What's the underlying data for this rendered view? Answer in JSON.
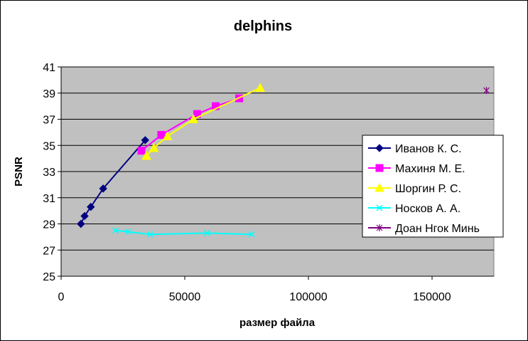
{
  "chart_data": {
    "type": "line",
    "title": "delphins",
    "xlabel": "размер файла",
    "ylabel": "PSNR",
    "xlim": [
      0,
      175000
    ],
    "ylim": [
      25,
      41
    ],
    "xticks": [
      0,
      50000,
      100000,
      150000
    ],
    "yticks": [
      25,
      27,
      29,
      31,
      33,
      35,
      37,
      39,
      41
    ],
    "grid": "horizontal",
    "plot_background": "#c0c0c0",
    "legend_position": "right",
    "series": [
      {
        "name": "Иванов К. С.",
        "color": "#000080",
        "marker": "diamond",
        "x": [
          8000,
          9500,
          12000,
          17000,
          34000
        ],
        "y": [
          29.0,
          29.6,
          30.3,
          31.7,
          35.4
        ]
      },
      {
        "name": "Махиня М. Е.",
        "color": "#ff00ff",
        "marker": "square",
        "x": [
          32500,
          40500,
          55000,
          62500,
          72000
        ],
        "y": [
          34.6,
          35.8,
          37.4,
          38.0,
          38.6
        ]
      },
      {
        "name": "Шоргин Р. С.",
        "color": "#ffff00",
        "marker": "triangle",
        "x": [
          34500,
          37500,
          43000,
          53500,
          80500
        ],
        "y": [
          34.2,
          34.8,
          35.7,
          37.0,
          39.4
        ]
      },
      {
        "name": "Носков А. А.",
        "color": "#00ffff",
        "marker": "x",
        "x": [
          22000,
          27000,
          36000,
          59000,
          77000
        ],
        "y": [
          28.5,
          28.4,
          28.2,
          28.3,
          28.2
        ]
      },
      {
        "name": "Доан Нгок Минь",
        "color": "#800080",
        "marker": "star",
        "x": [
          172000
        ],
        "y": [
          39.2
        ]
      }
    ]
  }
}
